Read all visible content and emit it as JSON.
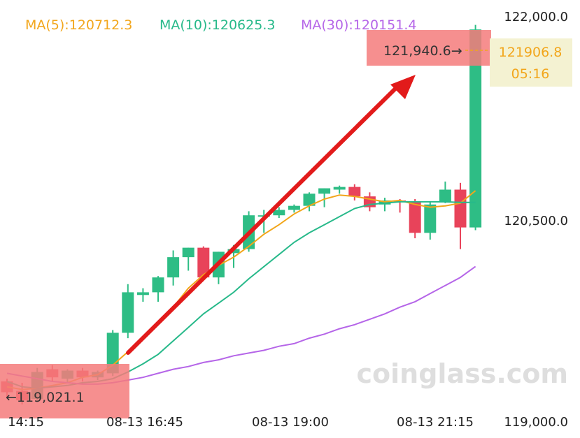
{
  "chart_data": {
    "type": "candlestick",
    "y_ticks": [
      "122,000.0",
      "120,500.0",
      "119,000.0"
    ],
    "y_tick_values": [
      122000,
      120500,
      119000
    ],
    "x_ticks": [
      "14:15",
      "08-13 16:45",
      "08-13 19:00",
      "08-13 21:15"
    ],
    "x_tick_index": [
      0,
      7,
      16,
      25
    ],
    "ma": [
      {
        "label": "MA(5):120712.3",
        "color": "#f2a61b"
      },
      {
        "label": "MA(10):120625.3",
        "color": "#27b98a"
      },
      {
        "label": "MA(30):120151.4",
        "color": "#b565e8"
      }
    ],
    "high_marker": "121,940.6",
    "low_marker": "119,021.1",
    "last_price": {
      "value": "121906.8",
      "countdown": "05:16"
    },
    "watermark": "coinglass.com",
    "colors": {
      "up": "#2ebd85",
      "down": "#e8435a",
      "arrow": "#e21b1b",
      "highlight": "#f47b7b"
    },
    "candles": [
      {
        "o": 119300,
        "h": 119320,
        "l": 119180,
        "c": 119220
      },
      {
        "o": 119230,
        "h": 119290,
        "l": 119130,
        "c": 119160
      },
      {
        "o": 119170,
        "h": 119400,
        "l": 119150,
        "c": 119370
      },
      {
        "o": 119390,
        "h": 119420,
        "l": 119300,
        "c": 119330
      },
      {
        "o": 119320,
        "h": 119390,
        "l": 119290,
        "c": 119380
      },
      {
        "o": 119380,
        "h": 119400,
        "l": 119300,
        "c": 119330
      },
      {
        "o": 119330,
        "h": 119380,
        "l": 119310,
        "c": 119370
      },
      {
        "o": 119360,
        "h": 119680,
        "l": 119340,
        "c": 119660
      },
      {
        "o": 119660,
        "h": 120020,
        "l": 119620,
        "c": 119960
      },
      {
        "o": 119940,
        "h": 119990,
        "l": 119890,
        "c": 119960
      },
      {
        "o": 119960,
        "h": 120080,
        "l": 119890,
        "c": 120070
      },
      {
        "o": 120070,
        "h": 120270,
        "l": 120010,
        "c": 120220
      },
      {
        "o": 120220,
        "h": 120290,
        "l": 120120,
        "c": 120290
      },
      {
        "o": 120290,
        "h": 120300,
        "l": 120050,
        "c": 120070
      },
      {
        "o": 120070,
        "h": 120260,
        "l": 120020,
        "c": 120260
      },
      {
        "o": 120250,
        "h": 120310,
        "l": 120140,
        "c": 120280
      },
      {
        "o": 120280,
        "h": 120560,
        "l": 120260,
        "c": 120530
      },
      {
        "o": 120530,
        "h": 120570,
        "l": 120400,
        "c": 120530
      },
      {
        "o": 120530,
        "h": 120590,
        "l": 120510,
        "c": 120570
      },
      {
        "o": 120570,
        "h": 120610,
        "l": 120550,
        "c": 120600
      },
      {
        "o": 120600,
        "h": 120700,
        "l": 120560,
        "c": 120690
      },
      {
        "o": 120690,
        "h": 120730,
        "l": 120590,
        "c": 120730
      },
      {
        "o": 120720,
        "h": 120750,
        "l": 120690,
        "c": 120740
      },
      {
        "o": 120740,
        "h": 120760,
        "l": 120640,
        "c": 120670
      },
      {
        "o": 120670,
        "h": 120700,
        "l": 120560,
        "c": 120590
      },
      {
        "o": 120610,
        "h": 120660,
        "l": 120560,
        "c": 120640
      },
      {
        "o": 120640,
        "h": 120650,
        "l": 120550,
        "c": 120630
      },
      {
        "o": 120630,
        "h": 120650,
        "l": 120360,
        "c": 120400
      },
      {
        "o": 120400,
        "h": 120630,
        "l": 120350,
        "c": 120610
      },
      {
        "o": 120630,
        "h": 120780,
        "l": 120620,
        "c": 120720
      },
      {
        "o": 120720,
        "h": 120770,
        "l": 120280,
        "c": 120440
      },
      {
        "o": 120440,
        "h": 121940,
        "l": 120420,
        "c": 121906
      }
    ],
    "ma5": [
      119260,
      119240,
      119250,
      119270,
      119290,
      119330,
      119350,
      119420,
      119520,
      119620,
      119740,
      119850,
      119990,
      120090,
      120160,
      120220,
      120300,
      120390,
      120460,
      120540,
      120600,
      120650,
      120680,
      120670,
      120650,
      120630,
      120640,
      120610,
      120590,
      120600,
      120620,
      120712
    ],
    "ma10": [
      119300,
      119260,
      119250,
      119260,
      119270,
      119290,
      119300,
      119320,
      119370,
      119430,
      119500,
      119600,
      119700,
      119800,
      119880,
      119960,
      120060,
      120150,
      120240,
      120330,
      120400,
      120460,
      120520,
      120580,
      120610,
      120620,
      120630,
      120630,
      120630,
      120630,
      120625,
      120625
    ],
    "ma30": [
      119360,
      119340,
      119320,
      119300,
      119290,
      119280,
      119280,
      119290,
      119310,
      119330,
      119360,
      119390,
      119410,
      119440,
      119460,
      119490,
      119510,
      119530,
      119560,
      119580,
      119620,
      119650,
      119690,
      119720,
      119760,
      119800,
      119850,
      119890,
      119950,
      120010,
      120070,
      120151
    ]
  }
}
